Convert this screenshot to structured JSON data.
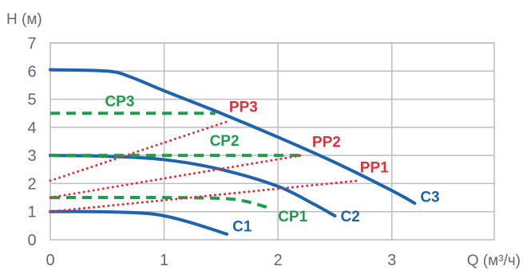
{
  "chart_data": {
    "type": "line",
    "xlabel": "Q (м³/ч)",
    "ylabel": "H (м)",
    "xlim": [
      0,
      3.9
    ],
    "ylim": [
      0,
      7
    ],
    "x_ticks": [
      "0",
      "1",
      "2",
      "3"
    ],
    "y_ticks": [
      "0",
      "1",
      "2",
      "3",
      "4",
      "5",
      "6",
      "7"
    ],
    "grid": true,
    "colors": {
      "C": "#1e63b0",
      "CP": "#1e9e4a",
      "PP": "#e0303a"
    },
    "series": [
      {
        "name": "C1",
        "style": "solid",
        "color": "#1e63b0",
        "x": [
          0,
          0.4,
          0.8,
          1.0,
          1.2,
          1.4,
          1.55
        ],
        "y": [
          1.0,
          1.0,
          0.95,
          0.85,
          0.65,
          0.4,
          0.2
        ]
      },
      {
        "name": "C2",
        "style": "solid",
        "color": "#1e63b0",
        "x": [
          0,
          0.5,
          1.0,
          1.5,
          2.0,
          2.3,
          2.5
        ],
        "y": [
          3.0,
          2.97,
          2.85,
          2.5,
          1.9,
          1.3,
          0.85
        ]
      },
      {
        "name": "C3",
        "style": "solid",
        "color": "#1e63b0",
        "x": [
          0,
          0.5,
          0.7,
          1.0,
          1.5,
          2.0,
          2.5,
          3.0,
          3.2
        ],
        "y": [
          6.05,
          6.0,
          5.8,
          5.3,
          4.5,
          3.65,
          2.75,
          1.75,
          1.3
        ]
      },
      {
        "name": "CP1",
        "style": "dashed",
        "color": "#1e9e4a",
        "x": [
          0,
          1.0,
          1.5,
          1.7,
          1.85,
          1.95
        ],
        "y": [
          1.5,
          1.5,
          1.47,
          1.38,
          1.22,
          1.1
        ]
      },
      {
        "name": "CP2",
        "style": "dashed",
        "color": "#1e9e4a",
        "x": [
          0,
          2.2
        ],
        "y": [
          3.0,
          3.0
        ]
      },
      {
        "name": "CP3",
        "style": "dashed",
        "color": "#1e9e4a",
        "x": [
          0,
          1.45
        ],
        "y": [
          4.5,
          4.5
        ]
      },
      {
        "name": "PP1",
        "style": "dotted",
        "color": "#e0303a",
        "x": [
          0,
          2.7
        ],
        "y": [
          1.0,
          2.1
        ]
      },
      {
        "name": "PP2",
        "style": "dotted",
        "color": "#e0303a",
        "x": [
          0,
          2.2
        ],
        "y": [
          1.5,
          3.0
        ]
      },
      {
        "name": "PP3",
        "style": "dotted",
        "color": "#e0303a",
        "x": [
          0,
          1.55
        ],
        "y": [
          2.1,
          4.2
        ]
      }
    ],
    "annotations": [
      {
        "text": "C1",
        "x": 1.6,
        "y": 0.3,
        "color": "#1e63b0"
      },
      {
        "text": "C2",
        "x": 2.55,
        "y": 0.65,
        "color": "#1e63b0"
      },
      {
        "text": "C3",
        "x": 3.25,
        "y": 1.35,
        "color": "#1e63b0"
      },
      {
        "text": "CP1",
        "x": 2.0,
        "y": 0.65,
        "color": "#1e9e4a"
      },
      {
        "text": "CP2",
        "x": 1.4,
        "y": 3.35,
        "color": "#1e9e4a"
      },
      {
        "text": "CP3",
        "x": 0.48,
        "y": 4.75,
        "color": "#1e9e4a"
      },
      {
        "text": "PP1",
        "x": 2.72,
        "y": 2.4,
        "color": "#e0303a"
      },
      {
        "text": "PP2",
        "x": 2.3,
        "y": 3.3,
        "color": "#e0303a"
      },
      {
        "text": "PP3",
        "x": 1.57,
        "y": 4.55,
        "color": "#e0303a"
      }
    ]
  }
}
